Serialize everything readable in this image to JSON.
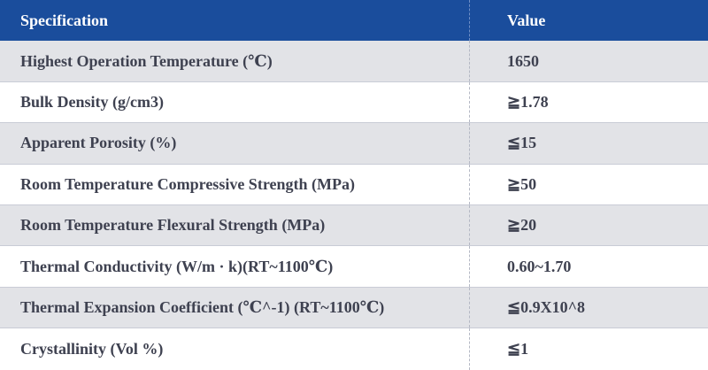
{
  "table": {
    "header": {
      "specification": "Specification",
      "value": "Value"
    },
    "rows": [
      {
        "specification": "Highest Operation Temperature (℃)",
        "value": "1650"
      },
      {
        "specification": "Bulk Density (g/cm3)",
        "value": "≧1.78"
      },
      {
        "specification": "Apparent Porosity (%)",
        "value": "≦15"
      },
      {
        "specification": "Room Temperature Compressive Strength (MPa)",
        "value": "≧50"
      },
      {
        "specification": "Room Temperature Flexural Strength (MPa)",
        "value": "≧20"
      },
      {
        "specification": "Thermal Conductivity (W/m · k)(RT~1100℃)",
        "value": "0.60~1.70"
      },
      {
        "specification": "Thermal Expansion Coefficient (℃^-1) (RT~1100℃)",
        "value": "≦0.9X10^8"
      },
      {
        "specification": "Crystallinity (Vol %)",
        "value": "≦1"
      }
    ]
  },
  "colors": {
    "header_bg": "#1a4d9c",
    "row_shade": "#e2e3e7",
    "text": "#3e4150"
  }
}
